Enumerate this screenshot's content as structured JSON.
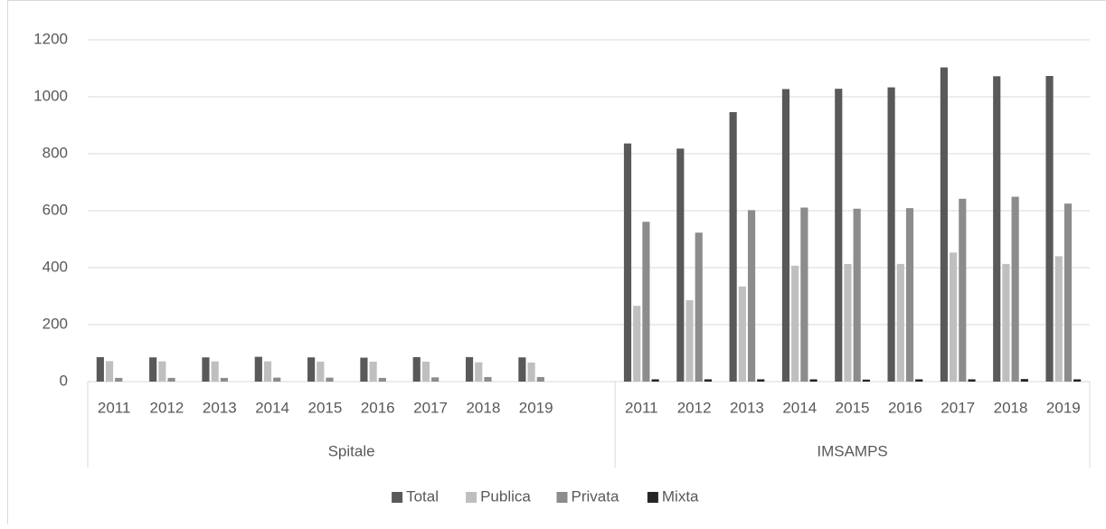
{
  "chart_data": {
    "type": "bar",
    "groups": [
      {
        "name": "Spitale",
        "categories": [
          "2011",
          "2012",
          "2013",
          "2014",
          "2015",
          "2016",
          "2017",
          "2018",
          "2019",
          null
        ]
      },
      {
        "name": "IMSAMPS",
        "categories": [
          "2011",
          "2012",
          "2013",
          "2014",
          "2015",
          "2016",
          "2017",
          "2018",
          "2019"
        ]
      }
    ],
    "series": [
      {
        "name": "Total",
        "color": "#595959",
        "values": [
          86,
          85,
          85,
          87,
          85,
          84,
          86,
          86,
          85,
          null,
          836,
          818,
          946,
          1027,
          1028,
          1033,
          1103,
          1072,
          1073
        ]
      },
      {
        "name": "Publica",
        "color": "#bfbfbf",
        "values": [
          72,
          71,
          71,
          71,
          70,
          70,
          70,
          68,
          67,
          null,
          266,
          286,
          334,
          407,
          413,
          413,
          453,
          413,
          440
        ]
      },
      {
        "name": "Privata",
        "color": "#8c8c8c",
        "values": [
          13,
          13,
          13,
          14,
          14,
          13,
          15,
          16,
          16,
          null,
          561,
          523,
          602,
          611,
          607,
          609,
          642,
          649,
          625
        ]
      },
      {
        "name": "Mixta",
        "color": "#262626",
        "values": [
          0,
          0,
          0,
          0,
          0,
          0,
          0,
          0,
          0,
          null,
          8,
          8,
          8,
          8,
          7,
          8,
          8,
          9,
          8
        ]
      }
    ],
    "ylim": [
      0,
      1200
    ],
    "yticks": [
      0,
      200,
      400,
      600,
      800,
      1000,
      1200
    ],
    "grid": true,
    "legend": "bottom"
  }
}
